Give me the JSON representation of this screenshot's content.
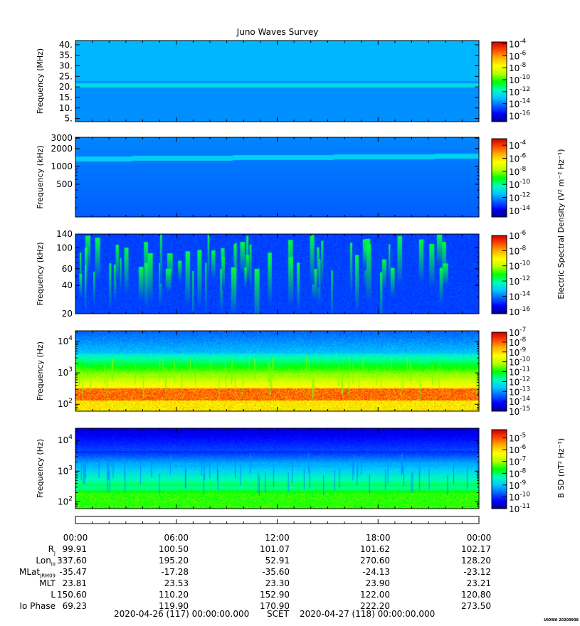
{
  "chart_data": {
    "type": "heatmap",
    "title": "Juno Waves Survey",
    "colormap": [
      "#00008b",
      "#0000ff",
      "#0064ff",
      "#00c8ff",
      "#00ffb4",
      "#00ff00",
      "#b4ff00",
      "#ffff00",
      "#ffb400",
      "#ff4600",
      "#c80000"
    ],
    "panels": [
      {
        "id": "hfwbr_mhz",
        "ylabel": "Frequency (MHz)",
        "yscale": "linear",
        "ylim": [
          3.5,
          42
        ],
        "yticks": [
          {
            "v": 40,
            "t": "40."
          },
          {
            "v": 35,
            "t": "35."
          },
          {
            "v": 30,
            "t": "30."
          },
          {
            "v": 25,
            "t": "25."
          },
          {
            "v": 20,
            "t": "20."
          },
          {
            "v": 15,
            "t": "15."
          },
          {
            "v": 10,
            "t": "10."
          },
          {
            "v": 5,
            "t": "5."
          }
        ],
        "colorbar": {
          "ticks": [
            {
              "e": -4,
              "t": "-4"
            },
            {
              "e": -6,
              "t": "-6"
            },
            {
              "e": -8,
              "t": "-8"
            },
            {
              "e": -10,
              "t": "-10"
            },
            {
              "e": -12,
              "t": "-12"
            },
            {
              "e": -14,
              "t": "-14"
            },
            {
              "e": -16,
              "t": "-16"
            }
          ],
          "range": [
            -17,
            -3.7
          ]
        },
        "base_level": -13.5,
        "features": [
          {
            "type": "band",
            "y": 21,
            "value": -12.6
          }
        ]
      },
      {
        "id": "hfwbr_khz",
        "ylabel": "Frequency (kHz)",
        "yscale": "log",
        "ylim": [
          140,
          3100
        ],
        "yticks": [
          {
            "v": 3000,
            "t": "3000"
          },
          {
            "v": 2000,
            "t": "2000"
          },
          {
            "v": 1000,
            "t": "1000"
          },
          {
            "v": 500,
            "t": "500"
          }
        ],
        "colorbar": {
          "ticks": [
            {
              "e": -4,
              "t": "-4"
            },
            {
              "e": -6,
              "t": "-6"
            },
            {
              "e": -8,
              "t": "-8"
            },
            {
              "e": -10,
              "t": "-10"
            },
            {
              "e": -12,
              "t": "-12"
            },
            {
              "e": -14,
              "t": "-14"
            }
          ],
          "range": [
            -15,
            -3
          ]
        },
        "base_level": -12.2,
        "features": [
          {
            "type": "band",
            "y": 1350,
            "value": -11.2
          }
        ]
      },
      {
        "id": "lfr_khz",
        "ylabel": "Frequency (kHz)",
        "yscale": "log",
        "ylim": [
          20,
          140
        ],
        "yticks": [
          {
            "v": 140,
            "t": "140"
          },
          {
            "v": 100,
            "t": "100"
          },
          {
            "v": 60,
            "t": "60"
          },
          {
            "v": 40,
            "t": "40"
          },
          {
            "v": 20,
            "t": "20"
          }
        ],
        "colorbar": {
          "ticks": [
            {
              "e": -6,
              "t": "-6"
            },
            {
              "e": -8,
              "t": "-8"
            },
            {
              "e": -10,
              "t": "-10"
            },
            {
              "e": -12,
              "t": "-12"
            },
            {
              "e": -14,
              "t": "-14"
            },
            {
              "e": -16,
              "t": "-16"
            }
          ],
          "range": [
            -16.3,
            -6
          ]
        },
        "base_level": -14.6,
        "features": [
          {
            "type": "bursts",
            "value": -12.2
          }
        ]
      },
      {
        "id": "lfr_hz",
        "ylabel": "Frequency (Hz)",
        "yscale": "log",
        "ylim": [
          60,
          22000
        ],
        "yticks": [
          {
            "v": 10000,
            "t": "4",
            "b": "10"
          },
          {
            "v": 1000,
            "t": "3",
            "b": "10"
          },
          {
            "v": 100,
            "t": "2",
            "b": "10"
          }
        ],
        "colorbar": {
          "ticks": [
            {
              "e": -7,
              "t": "-7"
            },
            {
              "e": -8,
              "t": "-8"
            },
            {
              "e": -9,
              "t": "-9"
            },
            {
              "e": -10,
              "t": "-10"
            },
            {
              "e": -11,
              "t": "-11"
            },
            {
              "e": -12,
              "t": "-12"
            },
            {
              "e": -13,
              "t": "-13"
            },
            {
              "e": -14,
              "t": "-14"
            },
            {
              "e": -15,
              "t": "-15"
            }
          ],
          "range": [
            -15,
            -7
          ]
        },
        "base_level": -11,
        "features": [
          {
            "type": "strong_band",
            "y_low": 160,
            "y_high": 330,
            "value": -7.5
          }
        ]
      },
      {
        "id": "mag_hz",
        "ylabel": "Frequency (Hz)",
        "yscale": "log",
        "ylim": [
          60,
          25000
        ],
        "yticks": [
          {
            "v": 10000,
            "t": "4",
            "b": "10"
          },
          {
            "v": 1000,
            "t": "3",
            "b": "10"
          },
          {
            "v": 100,
            "t": "2",
            "b": "10"
          }
        ],
        "colorbar": {
          "ticks": [
            {
              "e": -5,
              "t": "-5"
            },
            {
              "e": -6,
              "t": "-6"
            },
            {
              "e": -7,
              "t": "-7"
            },
            {
              "e": -8,
              "t": "-8"
            },
            {
              "e": -9,
              "t": "-9"
            },
            {
              "e": -10,
              "t": "-10"
            },
            {
              "e": -11,
              "t": "-11"
            }
          ],
          "range": [
            -11,
            -4.3
          ]
        },
        "base_level": -9,
        "features": [
          {
            "type": "low_freq_band",
            "value": -7.5
          }
        ]
      }
    ],
    "cbar_labels": {
      "electric": "Electric Spectral Density (V² m⁻² Hz⁻¹)",
      "magnetic": "B SD (nT² Hz⁻¹)"
    },
    "x_ticks": [
      "00:00",
      "06:00",
      "12:00",
      "18:00",
      "00:00"
    ],
    "ephemeris": [
      {
        "label": "R",
        "sub": "J",
        "values": [
          "99.91",
          "100.50",
          "101.07",
          "101.62",
          "102.17"
        ]
      },
      {
        "label": "Lon",
        "sub": "III",
        "values": [
          "337.60",
          "195.20",
          "52.91",
          "270.60",
          "128.20"
        ]
      },
      {
        "label": "MLat",
        "sub": "JRM09",
        "values": [
          "-35.47",
          "-17.28",
          "-35.60",
          "-24.13",
          "-23.12"
        ]
      },
      {
        "label": "MLT",
        "sub": "",
        "values": [
          "23.81",
          "23.53",
          "23.30",
          "23.90",
          "23.21"
        ]
      },
      {
        "label": "L",
        "sub": "",
        "values": [
          "150.60",
          "110.20",
          "152.90",
          "122.00",
          "120.80"
        ]
      },
      {
        "label": "Io Phase",
        "sub": "",
        "values": [
          "69.23",
          "119.90",
          "170.90",
          "222.20",
          "273.50"
        ]
      }
    ],
    "footer": {
      "start": "2020-04-26 (117) 00:00:00.000",
      "scet": "SCET",
      "end": "2020-04-27 (118) 00:00:00.000",
      "stamp": "UIOWA 20200908"
    }
  }
}
